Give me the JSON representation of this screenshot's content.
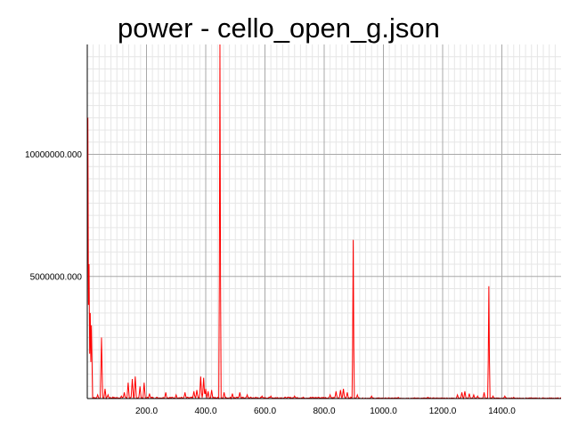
{
  "chart_data": {
    "type": "line",
    "title": "power - cello_open_g.json",
    "xlabel": "",
    "ylabel": "",
    "xlim": [
      0,
      1600
    ],
    "ylim": [
      0,
      14500000
    ],
    "x_ticks": [
      200,
      400,
      600,
      800,
      1000,
      1200,
      1400
    ],
    "x_tick_labels": [
      "200.0",
      "400.0",
      "600.0",
      "800.0",
      "1000.0",
      "1200.0",
      "1400.0"
    ],
    "y_ticks": [
      5000000,
      10000000
    ],
    "y_tick_labels": [
      "5000000.000",
      "10000000.000"
    ],
    "grid": true,
    "legend": "none",
    "series": [
      {
        "color": "#ff0000",
        "peaks": [
          [
            2,
            11500000
          ],
          [
            6,
            5500000
          ],
          [
            10,
            3500000
          ],
          [
            14,
            3000000
          ],
          [
            35,
            150000
          ],
          [
            48,
            2500000
          ],
          [
            60,
            400000
          ],
          [
            70,
            150000
          ],
          [
            115,
            100000
          ],
          [
            125,
            250000
          ],
          [
            138,
            650000
          ],
          [
            152,
            800000
          ],
          [
            162,
            900000
          ],
          [
            178,
            500000
          ],
          [
            192,
            650000
          ],
          [
            210,
            200000
          ],
          [
            265,
            250000
          ],
          [
            300,
            150000
          ],
          [
            330,
            250000
          ],
          [
            360,
            300000
          ],
          [
            370,
            350000
          ],
          [
            383,
            900000
          ],
          [
            393,
            850000
          ],
          [
            400,
            400000
          ],
          [
            408,
            300000
          ],
          [
            420,
            350000
          ],
          [
            448,
            14500000
          ],
          [
            462,
            250000
          ],
          [
            490,
            200000
          ],
          [
            515,
            250000
          ],
          [
            540,
            150000
          ],
          [
            590,
            100000
          ],
          [
            620,
            100000
          ],
          [
            700,
            100000
          ],
          [
            780,
            50000
          ],
          [
            820,
            150000
          ],
          [
            840,
            300000
          ],
          [
            855,
            350000
          ],
          [
            865,
            400000
          ],
          [
            878,
            250000
          ],
          [
            898,
            6500000
          ],
          [
            912,
            150000
          ],
          [
            960,
            100000
          ],
          [
            1050,
            50000
          ],
          [
            1150,
            50000
          ],
          [
            1250,
            150000
          ],
          [
            1265,
            250000
          ],
          [
            1275,
            300000
          ],
          [
            1290,
            200000
          ],
          [
            1305,
            150000
          ],
          [
            1318,
            100000
          ],
          [
            1340,
            250000
          ],
          [
            1356,
            4600000
          ],
          [
            1370,
            100000
          ],
          [
            1410,
            100000
          ],
          [
            1440,
            50000
          ]
        ]
      }
    ]
  }
}
